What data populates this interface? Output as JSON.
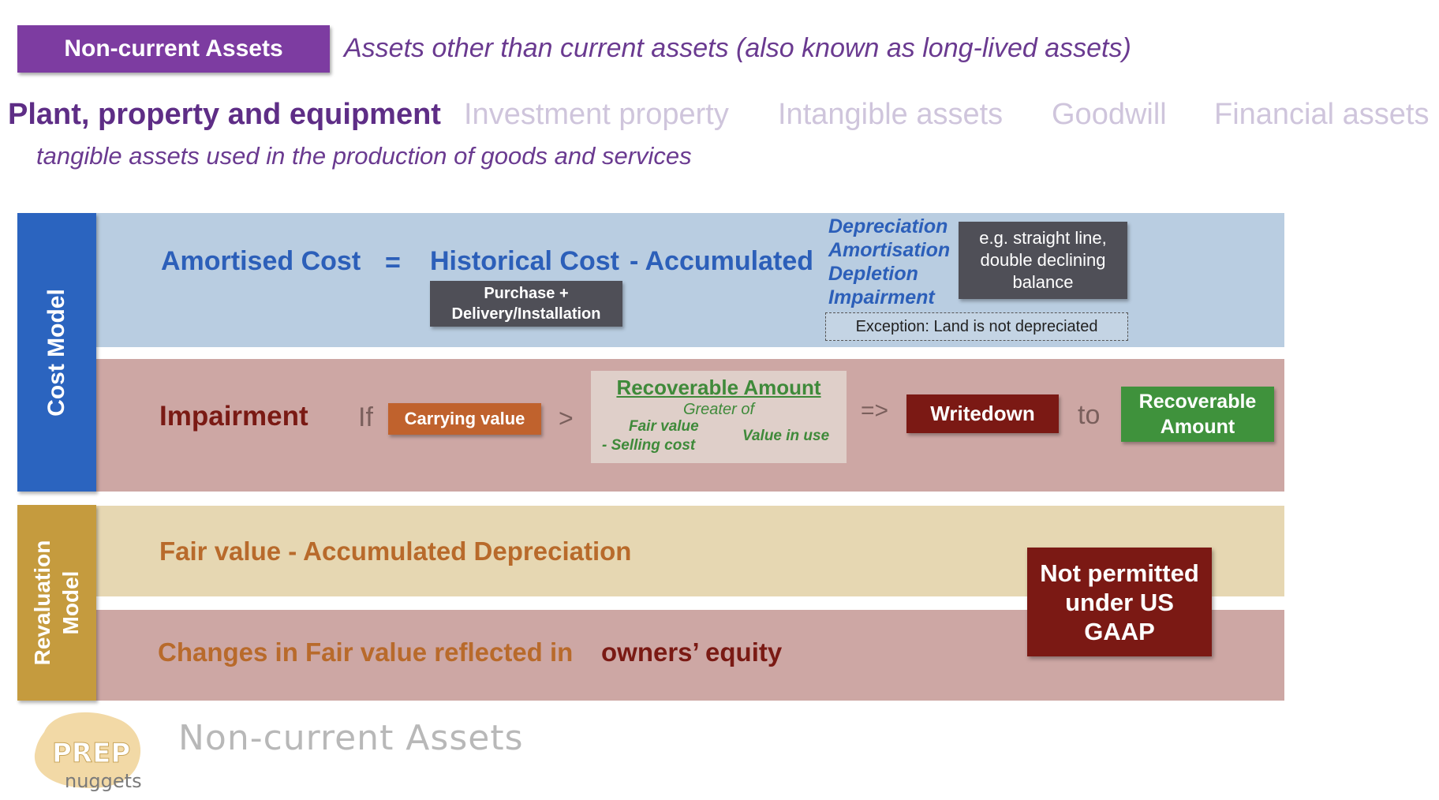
{
  "header": {
    "badge": "Non-current Assets",
    "definition": "Assets other than current assets (also known as long-lived assets)"
  },
  "categories": [
    "Plant, property and equipment",
    "Investment property",
    "Intangible assets",
    "Goodwill",
    "Financial assets"
  ],
  "category_definition": "tangible assets used in the production of goods and services",
  "cost_model": {
    "label": "Cost Model",
    "amortised_cost": "Amortised Cost",
    "equals": "=",
    "historical_cost": "Historical Cost",
    "minus_accumulated": "- Accumulated",
    "purchase_line1": "Purchase +",
    "purchase_line2": "Delivery/Installation",
    "methods": [
      "Depreciation",
      "Amortisation",
      "Depletion",
      "Impairment"
    ],
    "example": "e.g. straight line, double declining balance",
    "exception": "Exception: Land is not depreciated"
  },
  "impairment": {
    "title": "Impairment",
    "if": "If",
    "carrying_value": "Carrying value",
    "greater_than": ">",
    "recoverable_title": "Recoverable Amount",
    "greater_of": "Greater of",
    "fair_value": "Fair value",
    "selling_cost": "- Selling cost",
    "value_in_use": "Value in use",
    "arrow": "=>",
    "writedown": "Writedown",
    "to": "to",
    "recoverable_amount": "Recoverable Amount"
  },
  "revaluation_model": {
    "label": "Revaluation Model",
    "fair_value_formula": "Fair value - Accumulated Depreciation",
    "changes": "Changes in Fair value reflected in",
    "owners_equity": "owners’ equity",
    "not_permitted": "Not permitted under US GAAP"
  },
  "footer": {
    "logo_text": "PREP nuggets",
    "title": "Non-current Assets"
  }
}
